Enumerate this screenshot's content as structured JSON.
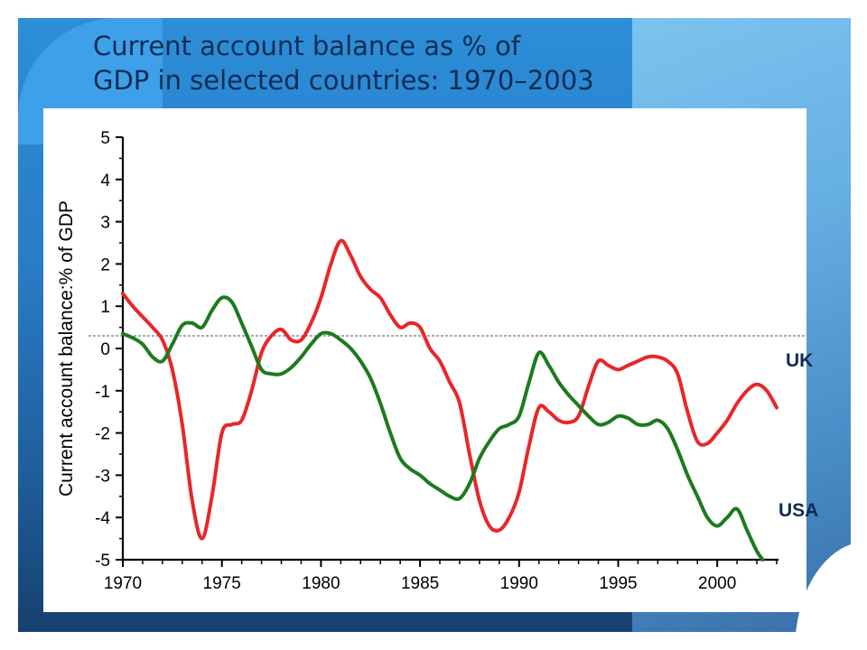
{
  "slide": {
    "title_line1": "Current account balance as % of",
    "title_line2": "GDP in selected countries: 1970–2003"
  },
  "colors": {
    "uk": "#e8262a",
    "usa": "#1d7a1d",
    "axis": "#000000",
    "reference_line": "#555555"
  },
  "chart_data": {
    "type": "line",
    "title": "",
    "xlabel": "",
    "ylabel": "Current account balance:% of GDP",
    "xlim": [
      1970,
      2003
    ],
    "ylim": [
      -5,
      5
    ],
    "xticks": [
      1970,
      1975,
      1980,
      1985,
      1990,
      1995,
      2000
    ],
    "yticks": [
      5,
      4,
      3,
      2,
      1,
      0,
      -1,
      -2,
      -3,
      -4,
      -5
    ],
    "reference_line_y": 0.3,
    "grid": false,
    "series": [
      {
        "name": "UK",
        "color": "#e8262a",
        "points": [
          [
            1970,
            1.3
          ],
          [
            1970.5,
            1.0
          ],
          [
            1971,
            0.75
          ],
          [
            1971.5,
            0.5
          ],
          [
            1972,
            0.2
          ],
          [
            1972.5,
            -0.5
          ],
          [
            1973,
            -1.8
          ],
          [
            1973.5,
            -3.6
          ],
          [
            1974,
            -4.5
          ],
          [
            1974.5,
            -3.5
          ],
          [
            1975,
            -2.0
          ],
          [
            1975.5,
            -1.8
          ],
          [
            1976,
            -1.7
          ],
          [
            1976.5,
            -1.0
          ],
          [
            1977,
            -0.1
          ],
          [
            1977.5,
            0.3
          ],
          [
            1978,
            0.45
          ],
          [
            1978.5,
            0.2
          ],
          [
            1979,
            0.2
          ],
          [
            1979.5,
            0.6
          ],
          [
            1980,
            1.2
          ],
          [
            1980.5,
            2.0
          ],
          [
            1981,
            2.55
          ],
          [
            1981.5,
            2.2
          ],
          [
            1982,
            1.7
          ],
          [
            1982.5,
            1.4
          ],
          [
            1983,
            1.2
          ],
          [
            1983.5,
            0.8
          ],
          [
            1984,
            0.5
          ],
          [
            1984.5,
            0.6
          ],
          [
            1985,
            0.5
          ],
          [
            1985.5,
            0.0
          ],
          [
            1986,
            -0.3
          ],
          [
            1986.5,
            -0.8
          ],
          [
            1987,
            -1.3
          ],
          [
            1987.5,
            -2.5
          ],
          [
            1988,
            -3.6
          ],
          [
            1988.5,
            -4.2
          ],
          [
            1989,
            -4.3
          ],
          [
            1989.5,
            -4.0
          ],
          [
            1990,
            -3.4
          ],
          [
            1990.5,
            -2.3
          ],
          [
            1991,
            -1.4
          ],
          [
            1991.5,
            -1.5
          ],
          [
            1992,
            -1.7
          ],
          [
            1992.5,
            -1.75
          ],
          [
            1993,
            -1.6
          ],
          [
            1993.5,
            -0.9
          ],
          [
            1994,
            -0.3
          ],
          [
            1994.5,
            -0.4
          ],
          [
            1995,
            -0.5
          ],
          [
            1995.5,
            -0.4
          ],
          [
            1996,
            -0.3
          ],
          [
            1996.5,
            -0.2
          ],
          [
            1997,
            -0.2
          ],
          [
            1997.5,
            -0.3
          ],
          [
            1998,
            -0.6
          ],
          [
            1998.5,
            -1.5
          ],
          [
            1999,
            -2.2
          ],
          [
            1999.5,
            -2.25
          ],
          [
            2000,
            -2.0
          ],
          [
            2000.5,
            -1.7
          ],
          [
            2001,
            -1.3
          ],
          [
            2001.5,
            -1.0
          ],
          [
            2002,
            -0.85
          ],
          [
            2002.5,
            -1.0
          ],
          [
            2003,
            -1.4
          ]
        ]
      },
      {
        "name": "USA",
        "color": "#1d7a1d",
        "points": [
          [
            1970,
            0.35
          ],
          [
            1970.5,
            0.25
          ],
          [
            1971,
            0.1
          ],
          [
            1971.5,
            -0.2
          ],
          [
            1972,
            -0.3
          ],
          [
            1972.5,
            0.1
          ],
          [
            1973,
            0.55
          ],
          [
            1973.5,
            0.6
          ],
          [
            1974,
            0.5
          ],
          [
            1974.5,
            0.9
          ],
          [
            1975,
            1.2
          ],
          [
            1975.5,
            1.1
          ],
          [
            1976,
            0.6
          ],
          [
            1976.5,
            0.05
          ],
          [
            1977,
            -0.5
          ],
          [
            1977.5,
            -0.6
          ],
          [
            1978,
            -0.6
          ],
          [
            1978.5,
            -0.45
          ],
          [
            1979,
            -0.2
          ],
          [
            1979.5,
            0.1
          ],
          [
            1980,
            0.35
          ],
          [
            1980.5,
            0.35
          ],
          [
            1981,
            0.2
          ],
          [
            1981.5,
            0.0
          ],
          [
            1982,
            -0.3
          ],
          [
            1982.5,
            -0.7
          ],
          [
            1983,
            -1.3
          ],
          [
            1983.5,
            -2.0
          ],
          [
            1984,
            -2.6
          ],
          [
            1984.5,
            -2.85
          ],
          [
            1985,
            -3.0
          ],
          [
            1985.5,
            -3.2
          ],
          [
            1986,
            -3.35
          ],
          [
            1986.5,
            -3.5
          ],
          [
            1987,
            -3.55
          ],
          [
            1987.5,
            -3.2
          ],
          [
            1988,
            -2.6
          ],
          [
            1988.5,
            -2.2
          ],
          [
            1989,
            -1.9
          ],
          [
            1989.5,
            -1.8
          ],
          [
            1990,
            -1.6
          ],
          [
            1990.5,
            -0.8
          ],
          [
            1991,
            -0.1
          ],
          [
            1991.5,
            -0.4
          ],
          [
            1992,
            -0.8
          ],
          [
            1992.5,
            -1.1
          ],
          [
            1993,
            -1.35
          ],
          [
            1993.5,
            -1.6
          ],
          [
            1994,
            -1.8
          ],
          [
            1994.5,
            -1.75
          ],
          [
            1995,
            -1.6
          ],
          [
            1995.5,
            -1.65
          ],
          [
            1996,
            -1.8
          ],
          [
            1996.5,
            -1.8
          ],
          [
            1997,
            -1.7
          ],
          [
            1997.5,
            -1.9
          ],
          [
            1998,
            -2.4
          ],
          [
            1998.5,
            -3.0
          ],
          [
            1999,
            -3.5
          ],
          [
            1999.5,
            -4.0
          ],
          [
            2000,
            -4.2
          ],
          [
            2000.5,
            -4.0
          ],
          [
            2001,
            -3.8
          ],
          [
            2001.5,
            -4.3
          ],
          [
            2002,
            -4.8
          ],
          [
            2002.3,
            -5.0
          ]
        ]
      }
    ]
  },
  "series_tags": {
    "uk": "UK",
    "usa": "USA"
  }
}
